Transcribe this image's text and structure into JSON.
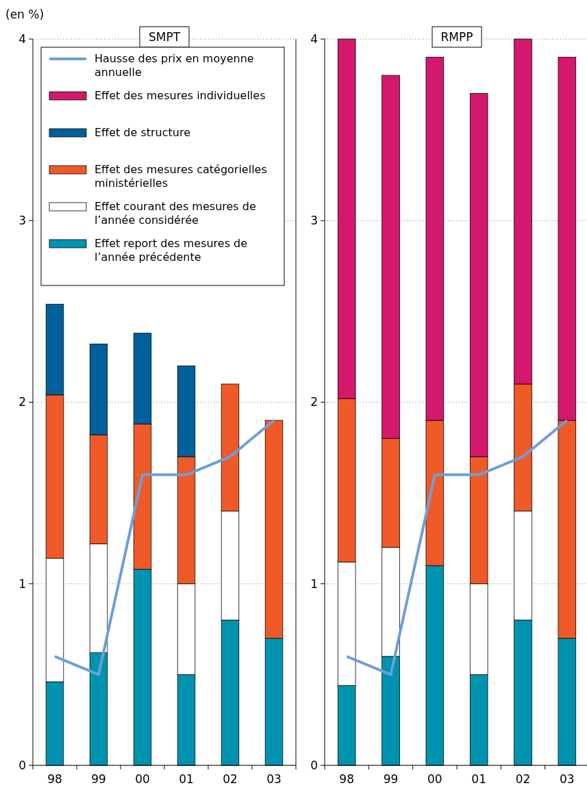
{
  "chart_data": [
    {
      "type": "bar",
      "title": "SMPT",
      "ylabel": "(en %)",
      "stacked": true,
      "categories": [
        "98",
        "99",
        "00",
        "01",
        "02",
        "03"
      ],
      "ylim": [
        0,
        4
      ],
      "yticks": [
        0,
        1,
        2,
        3,
        4
      ],
      "grid": "y",
      "legend": "top left",
      "line_style": "solid",
      "marker": "none",
      "series": [
        {
          "name": "Effet report des mesures de l’année précédente",
          "color": "#0093b0",
          "values": [
            0.46,
            0.62,
            1.08,
            0.5,
            0.8,
            0.7
          ]
        },
        {
          "name": "Effet courant des mesures de l’année considérée",
          "color": "#ffffff",
          "values": [
            0.68,
            0.6,
            0,
            0.5,
            0.6,
            0
          ]
        },
        {
          "name": "Effet des mesures catégorielles ministérielles",
          "color": "#f05a28",
          "values": [
            0.9,
            0.6,
            0.8,
            0.7,
            0.7,
            1.2
          ]
        },
        {
          "name": "Effet de structure",
          "color": "#00609c",
          "values": [
            0.5,
            0.5,
            0.5,
            0.5,
            0,
            0
          ]
        },
        {
          "name": "Effet des mesures individuelles",
          "color": "#d4186c",
          "values": [
            null,
            null,
            null,
            null,
            null,
            null
          ]
        },
        {
          "type": "line",
          "name": "Hausse des prix en moyenne annuelle",
          "color": "#6b9fd9",
          "values": [
            0.6,
            0.5,
            1.6,
            1.6,
            1.7,
            1.9
          ]
        }
      ]
    },
    {
      "type": "bar",
      "title": "RMPP",
      "stacked": true,
      "categories": [
        "98",
        "99",
        "00",
        "01",
        "02",
        "03"
      ],
      "ylim": [
        0,
        4
      ],
      "yticks": [
        0,
        1,
        2,
        3,
        4
      ],
      "grid": "y",
      "line_style": "solid",
      "marker": "none",
      "series": [
        {
          "color": "#0093b0",
          "values": [
            0.44,
            0.6,
            1.1,
            0.5,
            0.8,
            0.7
          ]
        },
        {
          "color": "#ffffff",
          "values": [
            0.68,
            0.6,
            0,
            0.5,
            0.6,
            0
          ]
        },
        {
          "color": "#f05a28",
          "values": [
            0.9,
            0.6,
            0.8,
            0.7,
            0.7,
            1.2
          ]
        },
        {
          "color": "#d4186c",
          "values": [
            1.98,
            2.0,
            2.0,
            2.0,
            1.9,
            2.0
          ]
        },
        {
          "type": "line",
          "color": "#6b9fd9",
          "values": [
            0.6,
            0.5,
            1.6,
            1.6,
            1.7,
            1.9
          ]
        }
      ]
    }
  ]
}
